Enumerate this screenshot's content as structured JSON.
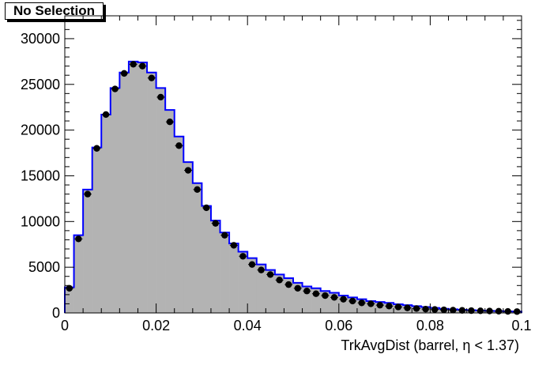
{
  "selection_label": "No Selection",
  "chart_data": {
    "type": "histogram",
    "xlabel": "TrkAvgDist (barrel,  η < 1.37)",
    "xlim": [
      0,
      0.1
    ],
    "ylim": [
      0,
      32500
    ],
    "xticks": [
      "0",
      "0.02",
      "0.04",
      "0.06",
      "0.08",
      "0.1"
    ],
    "yticks": [
      "0",
      "5000",
      "10000",
      "15000",
      "20000",
      "25000",
      "30000"
    ],
    "bin_edges_start": 0,
    "bin_width": 0.002,
    "series": [
      {
        "style": "filled-histogram",
        "fill_color": "#b3b3b3",
        "line_color": "#0000ff",
        "values": [
          2800,
          8500,
          13500,
          18100,
          21700,
          24600,
          26300,
          27500,
          27400,
          26300,
          24600,
          22200,
          19300,
          16500,
          14200,
          11700,
          10100,
          8800,
          7600,
          6700,
          6000,
          5300,
          4700,
          4200,
          3800,
          3300,
          2900,
          2700,
          2400,
          2200,
          1900,
          1700,
          1500,
          1300,
          1200,
          1100,
          950,
          850,
          750,
          650,
          550,
          450,
          400,
          350,
          300,
          260,
          230,
          200,
          170,
          150
        ]
      },
      {
        "style": "points",
        "color": "#000000",
        "values": [
          2700,
          8100,
          13000,
          18000,
          21700,
          24500,
          26200,
          27200,
          27000,
          25700,
          23600,
          20900,
          18300,
          15600,
          13500,
          11500,
          9800,
          8500,
          7400,
          6200,
          5300,
          4700,
          4200,
          3600,
          3100,
          2700,
          2400,
          2100,
          1900,
          1700,
          1500,
          1300,
          1100,
          1000,
          850,
          750,
          650,
          550,
          480,
          420,
          380,
          340,
          310,
          280,
          250,
          230,
          210,
          190,
          170,
          150
        ]
      }
    ]
  }
}
